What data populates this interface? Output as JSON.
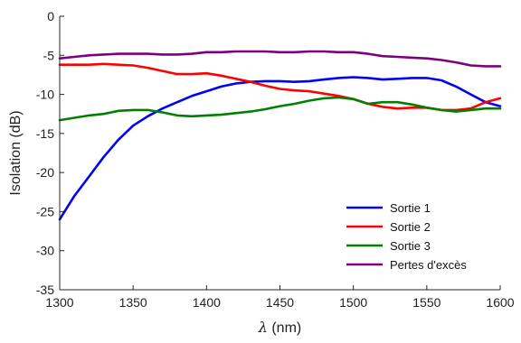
{
  "chart_data": {
    "type": "line",
    "xlabel_symbol": "λ",
    "xlabel_unit": "(nm)",
    "ylabel": "Isolation (dB)",
    "xlim": [
      1300,
      1600
    ],
    "ylim": [
      -35,
      0
    ],
    "xticks": [
      "1300",
      "1350",
      "1400",
      "1450",
      "1500",
      "1550",
      "1600"
    ],
    "yticks": [
      "0",
      "-5",
      "-10",
      "-15",
      "-20",
      "-25",
      "-30",
      "-35"
    ],
    "grid": false,
    "legend_position": "bottom-right",
    "x": [
      1300,
      1310,
      1320,
      1330,
      1340,
      1350,
      1360,
      1370,
      1380,
      1390,
      1400,
      1410,
      1420,
      1430,
      1440,
      1450,
      1460,
      1470,
      1480,
      1490,
      1500,
      1510,
      1520,
      1530,
      1540,
      1550,
      1560,
      1570,
      1580,
      1590,
      1600
    ],
    "series": [
      {
        "name": "Sortie 1",
        "color": "#0000ff",
        "values": [
          -26.0,
          -23.0,
          -20.5,
          -18.0,
          -15.8,
          -14.0,
          -12.8,
          -11.8,
          -11.0,
          -10.2,
          -9.6,
          -9.0,
          -8.6,
          -8.4,
          -8.3,
          -8.3,
          -8.4,
          -8.3,
          -8.1,
          -7.9,
          -7.8,
          -7.9,
          -8.1,
          -8.0,
          -7.9,
          -7.9,
          -8.2,
          -9.0,
          -10.0,
          -11.0,
          -11.5
        ]
      },
      {
        "name": "Sortie 2",
        "color": "#ff0000",
        "values": [
          -6.2,
          -6.2,
          -6.2,
          -6.1,
          -6.2,
          -6.3,
          -6.6,
          -7.0,
          -7.4,
          -7.4,
          -7.3,
          -7.6,
          -8.0,
          -8.4,
          -8.9,
          -9.3,
          -9.5,
          -9.6,
          -9.9,
          -10.2,
          -10.6,
          -11.2,
          -11.6,
          -11.8,
          -11.7,
          -11.7,
          -12.0,
          -12.0,
          -11.8,
          -11.0,
          -10.5
        ]
      },
      {
        "name": "Sortie 3",
        "color": "#008000",
        "values": [
          -13.3,
          -13.0,
          -12.7,
          -12.5,
          -12.1,
          -12.0,
          -12.0,
          -12.3,
          -12.7,
          -12.8,
          -12.7,
          -12.6,
          -12.4,
          -12.2,
          -11.9,
          -11.5,
          -11.2,
          -10.8,
          -10.5,
          -10.4,
          -10.6,
          -11.2,
          -11.0,
          -11.0,
          -11.3,
          -11.7,
          -12.0,
          -12.2,
          -12.0,
          -11.8,
          -11.8
        ]
      },
      {
        "name": "Pertes d'excès",
        "color": "#7f007f",
        "values": [
          -5.4,
          -5.2,
          -5.0,
          -4.9,
          -4.8,
          -4.8,
          -4.8,
          -4.9,
          -4.9,
          -4.8,
          -4.6,
          -4.6,
          -4.5,
          -4.5,
          -4.5,
          -4.6,
          -4.6,
          -4.5,
          -4.5,
          -4.6,
          -4.6,
          -4.8,
          -5.1,
          -5.2,
          -5.3,
          -5.4,
          -5.6,
          -5.9,
          -6.3,
          -6.4,
          -6.4
        ]
      }
    ]
  }
}
